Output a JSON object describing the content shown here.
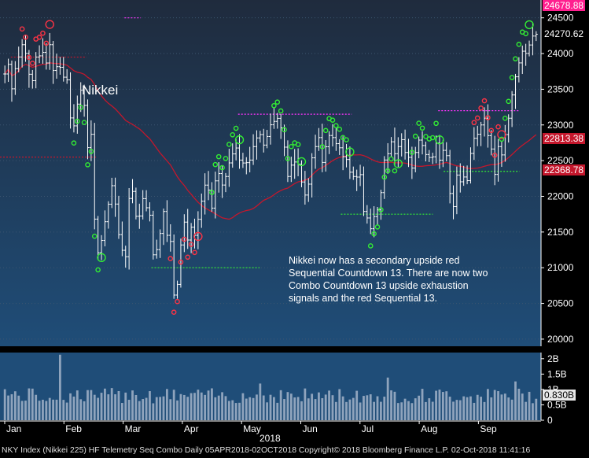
{
  "chart_data": {
    "type": "candlestick",
    "title": "Nikkei",
    "year_label": "2018",
    "footer": "NKY Index (Nikkei 225) HF Telemetry Seq Combo  Daily 05APR2018-02OCT2018  Copyright© 2018 Bloomberg Finance L.P.  02-Oct-2018 11:41:16",
    "annotation": "Nikkei now has a secondary upside red Sequential Countdown 13.  There are now two  Combo Countdown 13 upside exhaustion signals and the red Sequential 13.",
    "x_months": [
      "Jan",
      "Feb",
      "Mar",
      "Apr",
      "May",
      "Jun",
      "Jul",
      "Aug",
      "Sep"
    ],
    "price_axis": {
      "ylim": [
        19900,
        24750
      ],
      "ticks": [
        20000,
        20500,
        21000,
        21500,
        22000,
        22500,
        23000,
        23500,
        24000,
        24500
      ]
    },
    "volume_axis": {
      "ylim": [
        0,
        2.2
      ],
      "ticks": [
        "2B",
        "1.5B",
        "1B",
        "0.5B",
        "0"
      ],
      "tick_values": [
        2,
        1.5,
        1,
        0.5,
        0
      ]
    },
    "price_tags": [
      {
        "label": "24678.88",
        "value": 24678.88,
        "bg": "#ff1f8f",
        "fg": "#ffffff"
      },
      {
        "label": "24270.62",
        "value": 24270.62,
        "bg": "#000000",
        "fg": "#ffffff"
      },
      {
        "label": "22813.38",
        "value": 22813.38,
        "bg": "#c4172c",
        "fg": "#ffffff"
      },
      {
        "label": "22368.78",
        "value": 22368.78,
        "bg": "#c4172c",
        "fg": "#ffffff"
      }
    ],
    "volume_tag": {
      "label": "0.830B",
      "value": 0.83
    },
    "moving_average_color": "#c4172c",
    "series_color": "#ffffff",
    "closes": [
      23714,
      23849,
      23506,
      23788,
      23952,
      24124,
      24002,
      23710,
      23620,
      23951,
      23968,
      24017,
      23868,
      24124,
      23763,
      23816,
      23808,
      23669,
      23631,
      23098,
      22987,
      23292,
      23486,
      23274,
      22682,
      22869,
      21681,
      21210,
      21382,
      21645,
      21890,
      22149,
      21892,
      21464,
      21244,
      21154,
      21970,
      22069,
      21720,
      21724,
      21968,
      21840,
      21736,
      21181,
      21253,
      21480,
      21788,
      21454,
      21368,
      20617,
      20766,
      21319,
      21639,
      21388,
      21567,
      21454,
      21678,
      21932,
      22157,
      22088,
      21835,
      22217,
      22319,
      22158,
      22278,
      22468,
      22594,
      22677,
      22508,
      22467,
      22472,
      22508,
      22697,
      22818,
      22865,
      22718,
      22838,
      23002,
      23050,
      23092,
      22960,
      22689,
      22278,
      22437,
      22481,
      22450,
      22201,
      22018,
      22171,
      22539,
      22697,
      22823,
      22475,
      22694,
      22852,
      22823,
      22738,
      22680,
      22555,
      22516,
      22338,
      22278,
      22270,
      22304,
      21788,
      21697,
      21546,
      21716,
      21811,
      22052,
      22509,
      22597,
      22764,
      22597,
      22697,
      22794,
      22614,
      22546,
      22396,
      22614,
      22788,
      22712,
      22586,
      22544,
      22553,
      22746,
      22507,
      22644,
      22570,
      22040,
      21857,
      22298,
      22204,
      22271,
      22220,
      22601,
      22813,
      22869,
      23000,
      23094,
      22850,
      22663,
      22307,
      22697,
      22580,
      22865,
      23094,
      23420,
      23674,
      23869,
      24033,
      24002,
      24120,
      24245,
      24270
    ]
  }
}
